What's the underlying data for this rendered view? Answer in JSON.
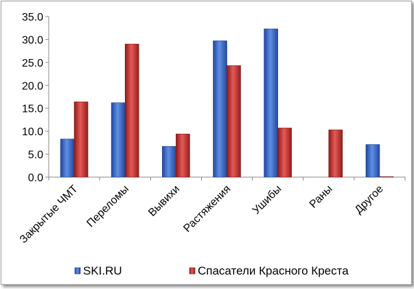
{
  "chart_data": {
    "type": "bar",
    "categories": [
      "Закрытые ЧМТ",
      "Переломы",
      "Вывихи",
      "Растяжения",
      "Ушибы",
      "Раны",
      "Другое"
    ],
    "series": [
      {
        "name": "SKI.RU",
        "color": "#3566c8",
        "values": [
          8.3,
          16.2,
          6.7,
          29.7,
          32.3,
          0,
          7.1
        ]
      },
      {
        "name": "Спасатели Красного Креста",
        "color": "#c8312f",
        "values": [
          16.4,
          29.0,
          9.4,
          24.3,
          10.7,
          10.3,
          0.1
        ]
      }
    ],
    "ylim": [
      0,
      35
    ],
    "yticks": [
      0,
      5,
      10,
      15,
      20,
      25,
      30,
      35
    ],
    "tick_format": "one-decimal",
    "grid": false,
    "legend_position": "bottom",
    "title": "",
    "xlabel": "",
    "ylabel": ""
  }
}
